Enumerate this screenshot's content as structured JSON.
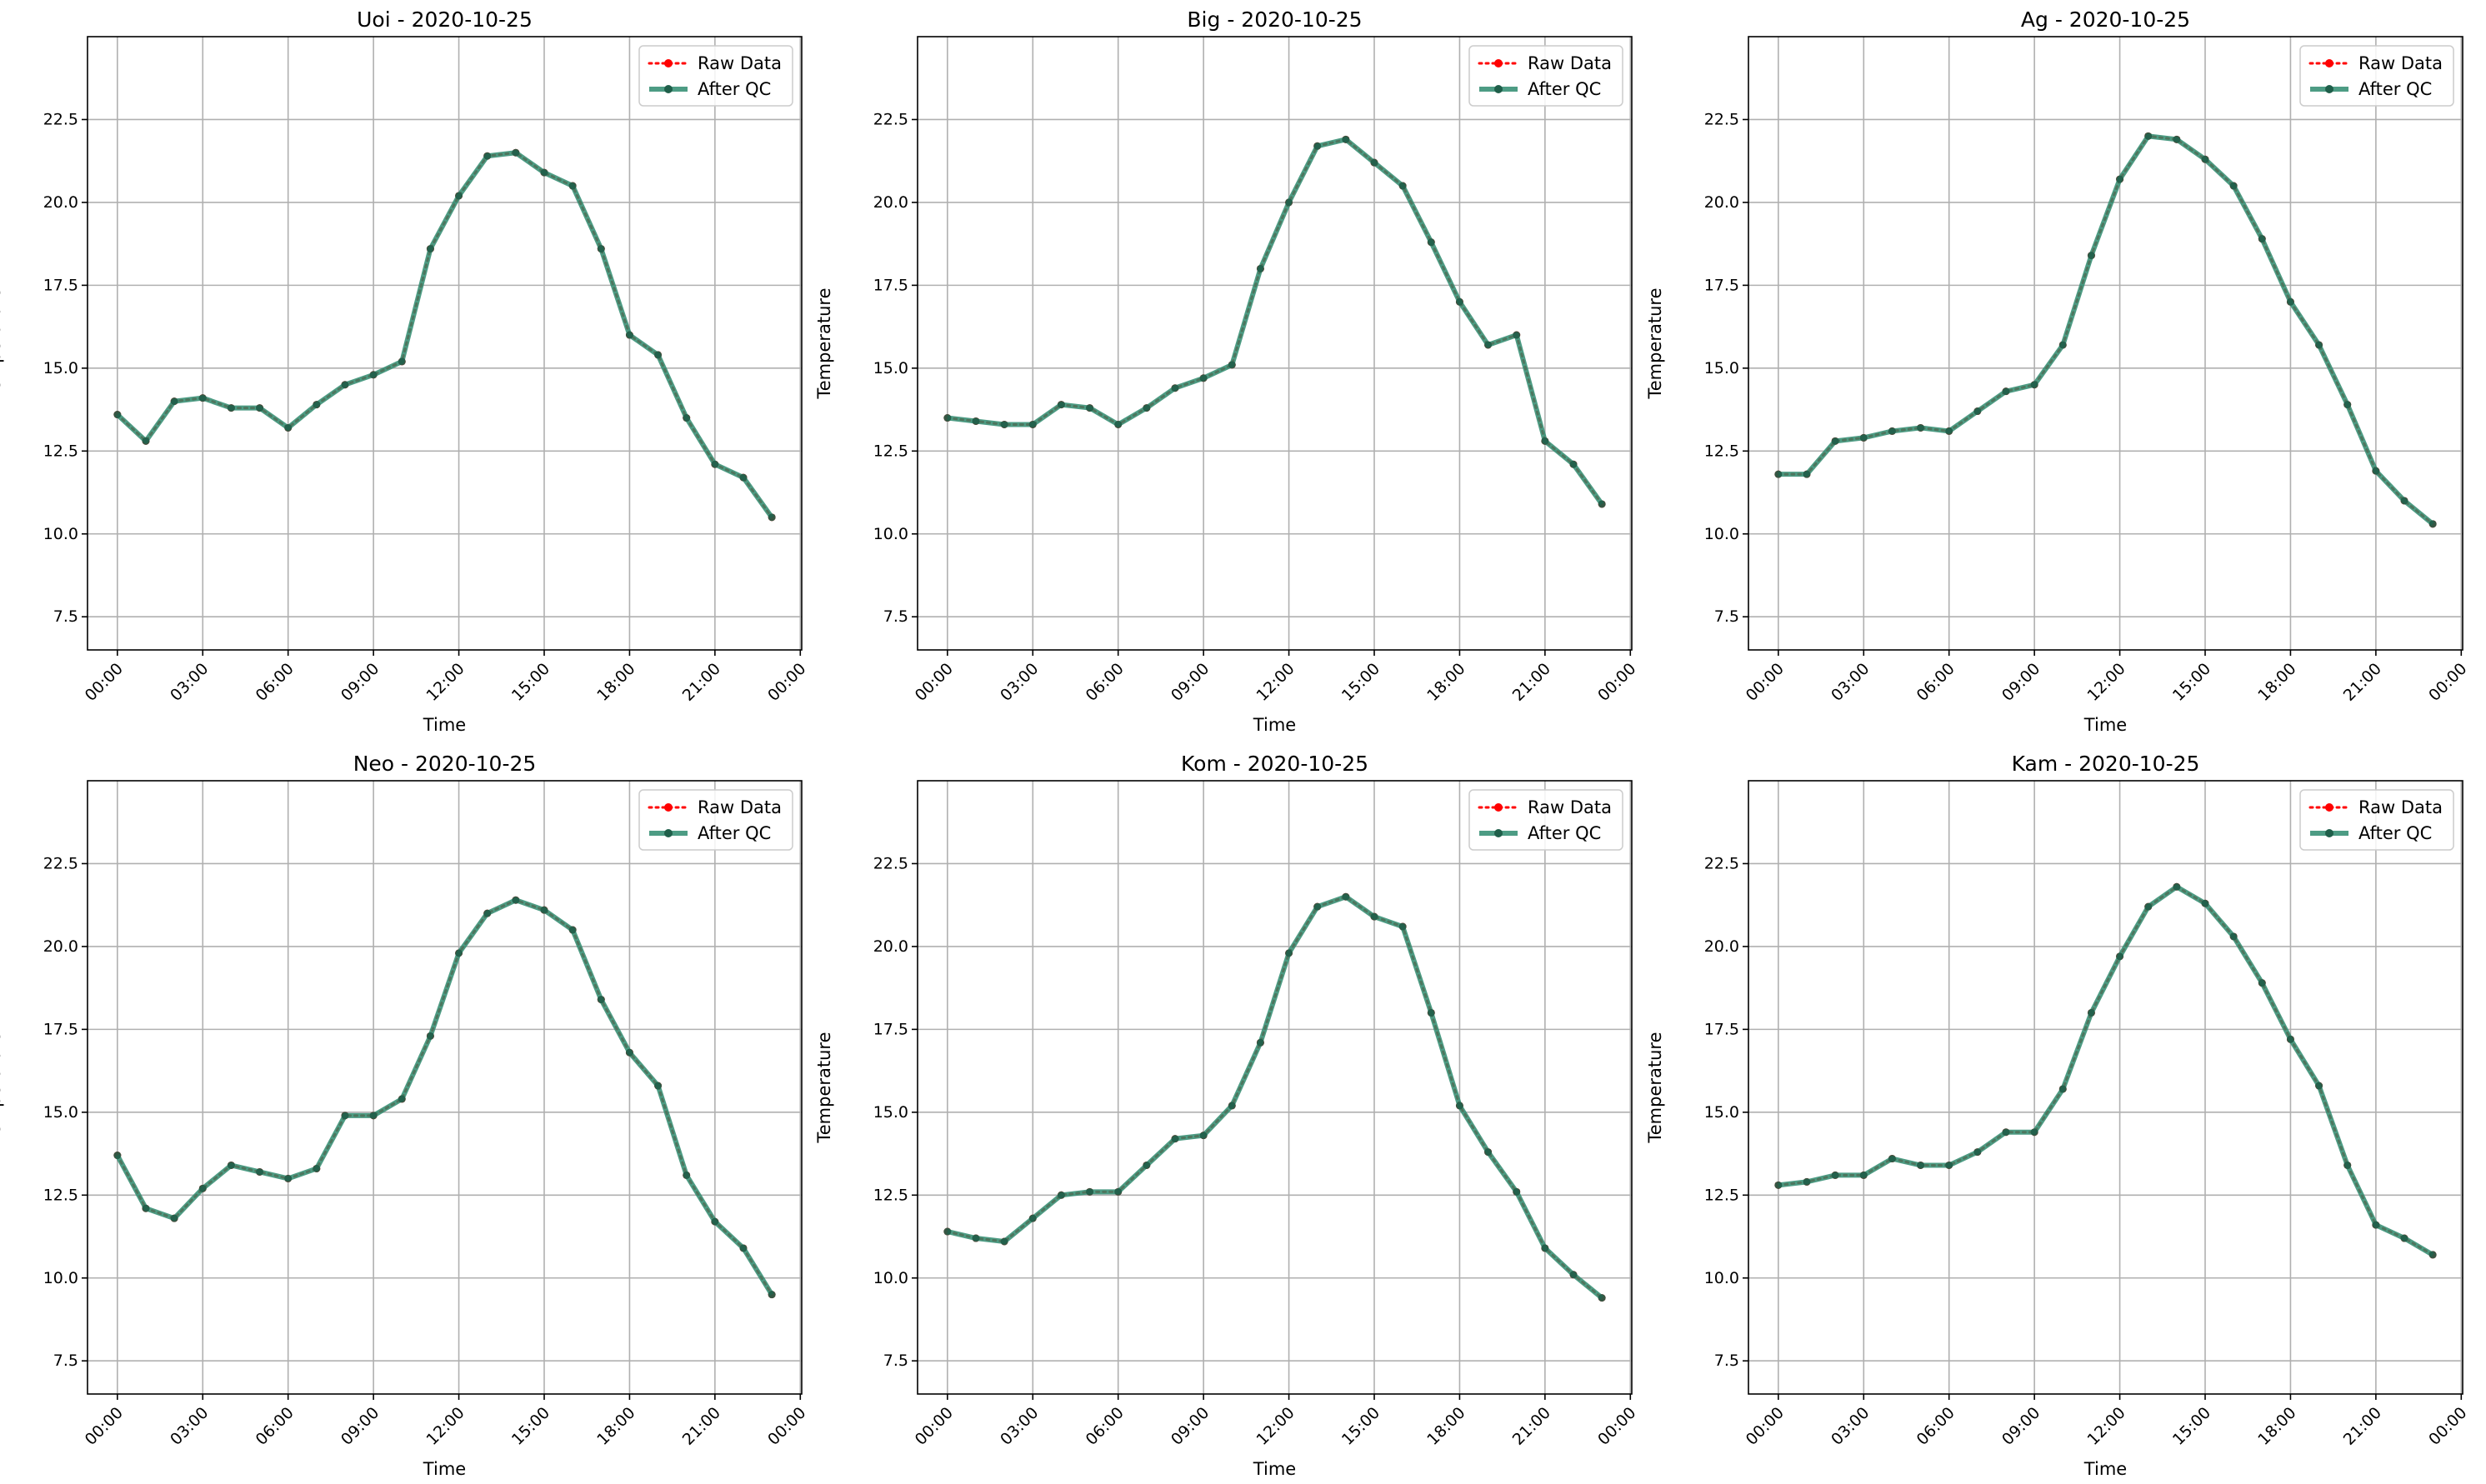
{
  "figure": {
    "x_tick_labels": [
      "00:00",
      "03:00",
      "06:00",
      "09:00",
      "12:00",
      "15:00",
      "18:00",
      "21:00",
      "00:00"
    ],
    "y_tick_labels": [
      "7.5",
      "10.0",
      "12.5",
      "15.0",
      "17.5",
      "20.0",
      "22.5"
    ],
    "colors": {
      "raw": "#ff0000",
      "qc": "#2e8b6e",
      "qc_marker": "#1f5f4a",
      "grid": "#b0b0b0"
    },
    "legend": {
      "raw_label": "Raw Data",
      "qc_label": "After QC",
      "placement": "upper right"
    }
  },
  "chart_data": [
    {
      "type": "line",
      "title": "Uoi - 2020-10-25",
      "xlabel": "Time",
      "ylabel": "Temperature",
      "x_start": "2020-10-25 00:00",
      "x_step_hours": 1,
      "xlim_hours": [
        -1.05,
        24.05
      ],
      "ylim": [
        6.5,
        25
      ],
      "grid": true,
      "legend_placement": "upper right",
      "series": [
        {
          "name": "Raw Data",
          "style": "dotted-with-markers",
          "values": [
            13.6,
            12.8,
            14.0,
            14.1,
            13.8,
            13.8,
            13.2,
            13.9,
            14.5,
            14.8,
            15.2,
            18.6,
            20.2,
            21.4,
            21.5,
            20.9,
            20.5,
            18.6,
            16.0,
            15.4,
            13.5,
            12.1,
            11.7,
            10.5
          ]
        },
        {
          "name": "After QC",
          "style": "solid-with-markers",
          "values": [
            13.6,
            12.8,
            14.0,
            14.1,
            13.8,
            13.8,
            13.2,
            13.9,
            14.5,
            14.8,
            15.2,
            18.6,
            20.2,
            21.4,
            21.5,
            20.9,
            20.5,
            18.6,
            16.0,
            15.4,
            13.5,
            12.1,
            11.7,
            10.5
          ]
        }
      ]
    },
    {
      "type": "line",
      "title": "Big - 2020-10-25",
      "xlabel": "Time",
      "ylabel": "Temperature",
      "x_start": "2020-10-25 00:00",
      "x_step_hours": 1,
      "xlim_hours": [
        -1.05,
        24.05
      ],
      "ylim": [
        6.5,
        25
      ],
      "grid": true,
      "legend_placement": "upper right",
      "series": [
        {
          "name": "Raw Data",
          "style": "dotted-with-markers",
          "values": [
            13.5,
            13.4,
            13.3,
            13.3,
            13.9,
            13.8,
            13.3,
            13.8,
            14.4,
            14.7,
            15.1,
            18.0,
            20.0,
            21.7,
            21.9,
            21.2,
            20.5,
            18.8,
            17.0,
            15.7,
            16.0,
            12.8,
            12.1,
            10.9
          ]
        },
        {
          "name": "After QC",
          "style": "solid-with-markers",
          "values": [
            13.5,
            13.4,
            13.3,
            13.3,
            13.9,
            13.8,
            13.3,
            13.8,
            14.4,
            14.7,
            15.1,
            18.0,
            20.0,
            21.7,
            21.9,
            21.2,
            20.5,
            18.8,
            17.0,
            15.7,
            16.0,
            12.8,
            12.1,
            10.9
          ]
        }
      ]
    },
    {
      "type": "line",
      "title": "Ag - 2020-10-25",
      "xlabel": "Time",
      "ylabel": "Temperature",
      "x_start": "2020-10-25 00:00",
      "x_step_hours": 1,
      "xlim_hours": [
        -1.05,
        24.05
      ],
      "ylim": [
        6.5,
        25
      ],
      "grid": true,
      "legend_placement": "upper right",
      "series": [
        {
          "name": "Raw Data",
          "style": "dotted-with-markers",
          "values": [
            11.8,
            11.8,
            12.8,
            12.9,
            13.1,
            13.2,
            13.1,
            13.7,
            14.3,
            14.5,
            15.7,
            18.4,
            20.7,
            22.0,
            21.9,
            21.3,
            20.5,
            18.9,
            17.0,
            15.7,
            13.9,
            11.9,
            11.0,
            10.3
          ]
        },
        {
          "name": "After QC",
          "style": "solid-with-markers",
          "values": [
            11.8,
            11.8,
            12.8,
            12.9,
            13.1,
            13.2,
            13.1,
            13.7,
            14.3,
            14.5,
            15.7,
            18.4,
            20.7,
            22.0,
            21.9,
            21.3,
            20.5,
            18.9,
            17.0,
            15.7,
            13.9,
            11.9,
            11.0,
            10.3
          ]
        }
      ]
    },
    {
      "type": "line",
      "title": "Neo - 2020-10-25",
      "xlabel": "Time",
      "ylabel": "Temperature",
      "x_start": "2020-10-25 00:00",
      "x_step_hours": 1,
      "xlim_hours": [
        -1.05,
        24.05
      ],
      "ylim": [
        6.5,
        25
      ],
      "grid": true,
      "legend_placement": "upper right",
      "series": [
        {
          "name": "Raw Data",
          "style": "dotted-with-markers",
          "values": [
            13.7,
            12.1,
            11.8,
            12.7,
            13.4,
            13.2,
            13.0,
            13.3,
            14.9,
            14.9,
            15.4,
            17.3,
            19.8,
            21.0,
            21.4,
            21.1,
            20.5,
            18.4,
            16.8,
            15.8,
            13.1,
            11.7,
            10.9,
            9.5
          ]
        },
        {
          "name": "After QC",
          "style": "solid-with-markers",
          "values": [
            13.7,
            12.1,
            11.8,
            12.7,
            13.4,
            13.2,
            13.0,
            13.3,
            14.9,
            14.9,
            15.4,
            17.3,
            19.8,
            21.0,
            21.4,
            21.1,
            20.5,
            18.4,
            16.8,
            15.8,
            13.1,
            11.7,
            10.9,
            9.5
          ]
        }
      ]
    },
    {
      "type": "line",
      "title": "Kom - 2020-10-25",
      "xlabel": "Time",
      "ylabel": "Temperature",
      "x_start": "2020-10-25 00:00",
      "x_step_hours": 1,
      "xlim_hours": [
        -1.05,
        24.05
      ],
      "ylim": [
        6.5,
        25
      ],
      "grid": true,
      "legend_placement": "upper right",
      "series": [
        {
          "name": "Raw Data",
          "style": "dotted-with-markers",
          "values": [
            11.4,
            11.2,
            11.1,
            11.8,
            12.5,
            12.6,
            12.6,
            13.4,
            14.2,
            14.3,
            15.2,
            17.1,
            19.8,
            21.2,
            21.5,
            20.9,
            20.6,
            18.0,
            15.2,
            13.8,
            12.6,
            10.9,
            10.1,
            9.4
          ]
        },
        {
          "name": "After QC",
          "style": "solid-with-markers",
          "values": [
            11.4,
            11.2,
            11.1,
            11.8,
            12.5,
            12.6,
            12.6,
            13.4,
            14.2,
            14.3,
            15.2,
            17.1,
            19.8,
            21.2,
            21.5,
            20.9,
            20.6,
            18.0,
            15.2,
            13.8,
            12.6,
            10.9,
            10.1,
            9.4
          ]
        }
      ]
    },
    {
      "type": "line",
      "title": "Kam - 2020-10-25",
      "xlabel": "Time",
      "ylabel": "Temperature",
      "x_start": "2020-10-25 00:00",
      "x_step_hours": 1,
      "xlim_hours": [
        -1.05,
        24.05
      ],
      "ylim": [
        6.5,
        25
      ],
      "grid": true,
      "legend_placement": "upper right",
      "series": [
        {
          "name": "Raw Data",
          "style": "dotted-with-markers",
          "values": [
            12.8,
            12.9,
            13.1,
            13.1,
            13.6,
            13.4,
            13.4,
            13.8,
            14.4,
            14.4,
            15.7,
            18.0,
            19.7,
            21.2,
            21.8,
            21.3,
            20.3,
            18.9,
            17.2,
            15.8,
            13.4,
            11.6,
            11.2,
            10.7
          ]
        },
        {
          "name": "After QC",
          "style": "solid-with-markers",
          "values": [
            12.8,
            12.9,
            13.1,
            13.1,
            13.6,
            13.4,
            13.4,
            13.8,
            14.4,
            14.4,
            15.7,
            18.0,
            19.7,
            21.2,
            21.8,
            21.3,
            20.3,
            18.9,
            17.2,
            15.8,
            13.4,
            11.6,
            11.2,
            10.7
          ]
        }
      ]
    }
  ]
}
